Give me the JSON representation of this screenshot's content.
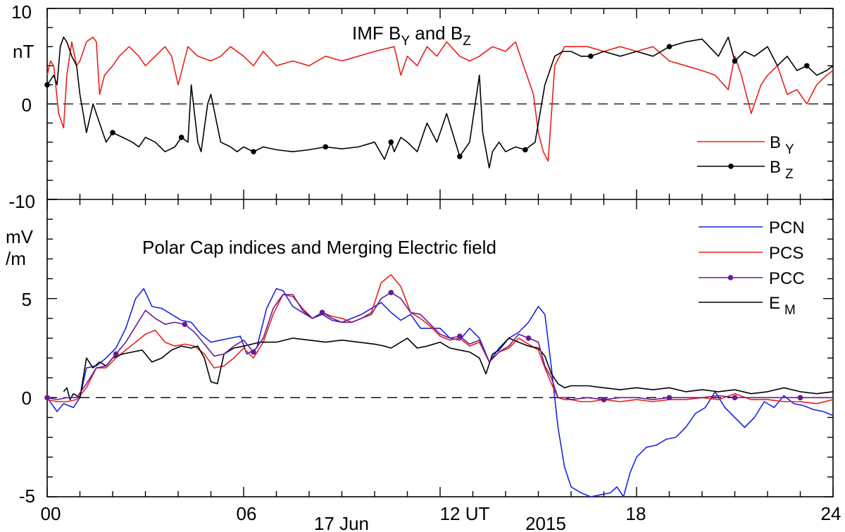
{
  "chart_data": [
    {
      "type": "line",
      "title": "IMF B",
      "title_sub_y": "Y",
      "title_mid": " and B",
      "title_sub_z": "Z",
      "ylabel": "nT",
      "ylim": [
        -10,
        10
      ],
      "yticks": [
        10,
        0,
        -10
      ],
      "yticklabels": [
        "10",
        "0",
        "-10"
      ],
      "xlim": [
        0,
        24
      ],
      "grid": false,
      "zero_line": "dashed",
      "legend_position": "right",
      "series": [
        {
          "name": "B",
          "name_sub": "Y",
          "color": "#e8201a",
          "marker": "none",
          "x": [
            0,
            0.1,
            0.2,
            0.35,
            0.5,
            0.6,
            0.75,
            0.9,
            1.0,
            1.2,
            1.4,
            1.5,
            1.6,
            1.75,
            2.0,
            2.2,
            2.5,
            2.8,
            3.0,
            3.3,
            3.6,
            3.8,
            4.0,
            4.3,
            4.6,
            5.0,
            5.3,
            5.6,
            6.0,
            6.3,
            6.6,
            7.0,
            7.5,
            8.0,
            8.5,
            9.0,
            9.5,
            10.0,
            10.6,
            10.8,
            11.0,
            11.3,
            11.6,
            11.9,
            12.2,
            12.6,
            12.9,
            13.2,
            13.6,
            14.0,
            14.3,
            14.6,
            14.85,
            15.0,
            15.15,
            15.3,
            15.5,
            15.8,
            16.0,
            16.5,
            17.0,
            17.5,
            18.0,
            18.5,
            19.0,
            19.5,
            20.0,
            20.4,
            20.8,
            21.0,
            21.2,
            21.5,
            21.8,
            22.0,
            22.3,
            22.6,
            22.9,
            23.2,
            23.5,
            23.8,
            24.0
          ],
          "y": [
            3,
            4.5,
            4,
            -1,
            -2.5,
            3,
            6.5,
            4,
            4.5,
            6.5,
            7,
            6.5,
            1,
            3,
            4,
            5,
            6,
            5,
            4,
            5,
            6,
            5,
            2,
            6,
            5,
            4.5,
            5,
            6,
            5,
            4,
            5.5,
            4,
            4.5,
            4,
            5,
            4.5,
            5,
            5.5,
            6,
            3,
            5,
            4,
            6,
            5,
            6.5,
            5,
            4.5,
            5,
            6,
            5.5,
            6.5,
            3.5,
            1,
            -3,
            -5,
            -6,
            4,
            6,
            6,
            6,
            5.5,
            6,
            5.5,
            6,
            4.5,
            4,
            3.5,
            3,
            1.5,
            5,
            3,
            -1,
            2,
            3,
            4,
            1,
            1.5,
            0,
            2,
            3,
            3.5
          ]
        },
        {
          "name": "B",
          "name_sub": "Z",
          "color": "#000000",
          "marker": "dot",
          "x": [
            0,
            0.1,
            0.2,
            0.3,
            0.4,
            0.5,
            0.6,
            0.75,
            0.9,
            1.0,
            1.2,
            1.4,
            1.6,
            1.8,
            2.0,
            2.3,
            2.6,
            2.8,
            3.0,
            3.3,
            3.6,
            3.9,
            4.1,
            4.3,
            4.4,
            4.6,
            4.7,
            4.9,
            5.0,
            5.3,
            5.6,
            5.8,
            6.0,
            6.3,
            6.6,
            7.0,
            7.5,
            8.0,
            8.5,
            9.0,
            9.5,
            10.0,
            10.3,
            10.5,
            10.6,
            10.8,
            11.0,
            11.3,
            11.6,
            11.9,
            12.2,
            12.6,
            12.9,
            13.2,
            13.3,
            13.5,
            13.6,
            13.8,
            14.0,
            14.3,
            14.6,
            14.9,
            15.2,
            15.5,
            15.75,
            16.0,
            16.3,
            16.6,
            17.0,
            17.5,
            18.0,
            18.5,
            19.0,
            19.5,
            20.0,
            20.5,
            20.8,
            21.0,
            21.3,
            21.6,
            22.0,
            22.3,
            22.6,
            22.9,
            23.2,
            23.5,
            23.8,
            24.0
          ],
          "y": [
            2,
            2.5,
            3,
            2,
            6,
            7,
            6.5,
            5,
            4,
            1,
            -3,
            0,
            -2,
            -4,
            -3,
            -3.5,
            -4,
            -4.5,
            -3.5,
            -4,
            -5,
            -4.5,
            -3.5,
            -4,
            2,
            -4,
            -5,
            0,
            1,
            -4,
            -4.5,
            -5,
            -4.5,
            -5,
            -4.5,
            -4.8,
            -5,
            -4.8,
            -4.5,
            -4.7,
            -4.5,
            -4,
            -5.8,
            -4,
            -5,
            -3.5,
            -4,
            -5,
            -2,
            -4,
            -1,
            -5.5,
            -4,
            3,
            -3,
            -6.7,
            -5,
            -4,
            -5,
            -4.5,
            -4.8,
            -4,
            2,
            5,
            5.5,
            5.5,
            5,
            5,
            5.5,
            5,
            5.5,
            5,
            6,
            6.5,
            6.8,
            5,
            7,
            4.5,
            5.5,
            5,
            6,
            4,
            5,
            3.5,
            4,
            3,
            3.5,
            4
          ]
        }
      ]
    },
    {
      "type": "line",
      "title": "Polar Cap indices and Merging Electric field",
      "ylabel_line1": "mV",
      "ylabel_line2": "/m",
      "ylim": [
        -5,
        10
      ],
      "yticks": [
        5,
        0,
        -5
      ],
      "yticklabels": [
        "5",
        "0",
        "-5"
      ],
      "xlim": [
        0,
        24
      ],
      "xticks": [
        0,
        6,
        12,
        18,
        24
      ],
      "xticklabels": [
        "00",
        "06",
        "12 UT",
        "18",
        "24"
      ],
      "date_label_day": "17 Jun",
      "date_label_year": "2015",
      "grid": false,
      "zero_line": "dashed",
      "legend_position": "top-right",
      "series": [
        {
          "name": "PCN",
          "color": "#1a24e0",
          "marker": "none",
          "x": [
            0,
            0.3,
            0.5,
            0.8,
            1.0,
            1.2,
            1.5,
            1.8,
            2.1,
            2.4,
            2.7,
            2.95,
            3.2,
            3.5,
            3.8,
            4.1,
            4.4,
            4.7,
            5.0,
            5.3,
            5.6,
            5.9,
            6.1,
            6.4,
            6.7,
            7.0,
            7.2,
            7.5,
            7.8,
            8.1,
            8.4,
            8.7,
            9.0,
            9.3,
            9.6,
            9.9,
            10.2,
            10.5,
            10.8,
            11.1,
            11.4,
            11.7,
            12.0,
            12.3,
            12.6,
            12.9,
            13.2,
            13.5,
            13.8,
            14.1,
            14.4,
            14.7,
            15.0,
            15.2,
            15.4,
            15.6,
            15.8,
            16.0,
            16.3,
            16.6,
            16.9,
            17.2,
            17.4,
            17.6,
            17.8,
            18.0,
            18.3,
            18.6,
            18.9,
            19.2,
            19.5,
            19.8,
            20.1,
            20.4,
            20.7,
            21.0,
            21.3,
            21.6,
            21.9,
            22.2,
            22.5,
            22.8,
            23.1,
            23.4,
            23.7,
            24.0
          ],
          "y": [
            0,
            -0.7,
            -0.3,
            -0.5,
            0,
            1.5,
            1.6,
            2.0,
            2.5,
            3.5,
            5.0,
            5.5,
            4.6,
            4.5,
            4.2,
            3.9,
            3.8,
            3.2,
            2.8,
            2.9,
            3.0,
            3.1,
            2.2,
            2.5,
            4.5,
            5.5,
            5.4,
            4.6,
            4.3,
            4.0,
            4.2,
            3.9,
            3.8,
            4.0,
            4.2,
            4.5,
            4.8,
            4.3,
            3.9,
            4.2,
            3.5,
            3.5,
            3.5,
            3.0,
            2.9,
            3.5,
            3.0,
            1.8,
            2.5,
            3.0,
            3.3,
            3.8,
            4.6,
            4.2,
            1.5,
            -1.5,
            -3.5,
            -4.5,
            -4.8,
            -5.0,
            -4.9,
            -4.8,
            -4.5,
            -5.0,
            -3.8,
            -3.0,
            -2.5,
            -2.4,
            -2.1,
            -2.0,
            -1.5,
            -0.8,
            -0.5,
            0.3,
            -0.5,
            -1.0,
            -1.5,
            -1.0,
            -0.2,
            -0.5,
            0.1,
            -0.3,
            -0.4,
            -0.6,
            -0.7,
            -0.9
          ]
        },
        {
          "name": "PCS",
          "color": "#e8201a",
          "marker": "none",
          "x": [
            0,
            0.3,
            0.6,
            0.9,
            1.2,
            1.5,
            1.8,
            2.1,
            2.4,
            2.7,
            3.0,
            3.3,
            3.6,
            3.9,
            4.2,
            4.5,
            4.8,
            5.1,
            5.4,
            5.7,
            6.0,
            6.3,
            6.6,
            6.9,
            7.2,
            7.5,
            7.8,
            8.1,
            8.4,
            8.7,
            9.0,
            9.3,
            9.6,
            9.9,
            10.2,
            10.5,
            10.8,
            11.1,
            11.4,
            11.7,
            12.0,
            12.3,
            12.6,
            12.9,
            13.2,
            13.5,
            13.8,
            14.1,
            14.4,
            14.7,
            15.0,
            15.2,
            15.4,
            15.6,
            15.8,
            16.0,
            16.3,
            16.6,
            17.0,
            17.5,
            18.0,
            18.5,
            19.0,
            19.5,
            20.0,
            20.5,
            21.0,
            21.5,
            22.0,
            22.5,
            23.0,
            23.5,
            24.0
          ],
          "y": [
            -0.1,
            -0.2,
            -0.2,
            -0.1,
            0.5,
            1.5,
            1.5,
            2.0,
            2.4,
            2.8,
            3.2,
            3.4,
            2.8,
            2.6,
            2.7,
            2.6,
            2.2,
            1.5,
            1.6,
            2.0,
            2.5,
            2.0,
            2.8,
            4.2,
            5.2,
            5.1,
            4.5,
            4.0,
            4.3,
            4.1,
            4.0,
            3.8,
            4.0,
            4.3,
            5.8,
            6.2,
            5.6,
            4.3,
            4.0,
            3.6,
            3.1,
            2.9,
            3.0,
            2.6,
            2.8,
            1.8,
            2.3,
            2.5,
            3.0,
            2.7,
            2.4,
            1.5,
            0.7,
            0,
            -0.1,
            -0.1,
            -0.2,
            -0.2,
            -0.1,
            -0.2,
            -0.1,
            -0.2,
            -0.1,
            -0.1,
            0,
            -0.1,
            0.2,
            -0.1,
            -0.1,
            -0.2,
            -0.2,
            -0.3,
            -0.1
          ]
        },
        {
          "name": "PCC",
          "color": "#6a1a90",
          "marker": "dot",
          "x": [
            0,
            0.3,
            0.6,
            0.9,
            1.2,
            1.5,
            1.8,
            2.1,
            2.4,
            2.7,
            3.0,
            3.3,
            3.6,
            3.9,
            4.2,
            4.5,
            4.8,
            5.1,
            5.4,
            5.7,
            6.0,
            6.3,
            6.6,
            6.9,
            7.2,
            7.5,
            7.8,
            8.1,
            8.4,
            8.7,
            9.0,
            9.3,
            9.6,
            9.9,
            10.2,
            10.5,
            10.8,
            11.1,
            11.4,
            11.7,
            12.0,
            12.3,
            12.6,
            12.9,
            13.2,
            13.5,
            13.8,
            14.1,
            14.4,
            14.7,
            15.0,
            15.2,
            15.4,
            15.6,
            15.8,
            16.0,
            16.5,
            17.0,
            17.5,
            18.0,
            18.5,
            19.0,
            19.5,
            20.0,
            20.5,
            21.0,
            21.5,
            22.0,
            22.5,
            23.0,
            23.5,
            24.0
          ],
          "y": [
            0,
            -0.1,
            0,
            0,
            0.7,
            1.5,
            1.6,
            2.2,
            2.8,
            3.6,
            4.4,
            4.0,
            3.7,
            3.8,
            3.7,
            3.3,
            2.7,
            2.1,
            2.2,
            2.6,
            2.9,
            2.3,
            3.0,
            4.5,
            5.2,
            5.2,
            4.4,
            4.0,
            4.3,
            4.0,
            3.8,
            3.8,
            4.0,
            4.2,
            5.0,
            5.3,
            5.0,
            4.3,
            4.2,
            3.7,
            3.2,
            3.0,
            3.1,
            2.7,
            2.9,
            1.8,
            2.3,
            2.6,
            3.2,
            3.0,
            2.8,
            1.6,
            1.0,
            0,
            0,
            -0.1,
            0,
            -0.1,
            0,
            0,
            -0.1,
            0,
            0,
            0,
            0.1,
            0,
            0,
            0,
            0,
            0,
            0,
            0
          ]
        },
        {
          "name": "E",
          "name_sub": "M",
          "color": "#000000",
          "marker": "none",
          "x": [
            0.5,
            0.6,
            0.7,
            0.8,
            1.0,
            1.2,
            1.4,
            1.6,
            1.8,
            2.0,
            2.3,
            2.6,
            2.9,
            3.2,
            3.5,
            3.8,
            4.1,
            4.4,
            4.6,
            4.8,
            5.0,
            5.2,
            5.4,
            5.7,
            6.0,
            6.5,
            7.0,
            7.5,
            8.0,
            8.5,
            9.0,
            9.5,
            10.0,
            10.3,
            10.5,
            10.8,
            11.0,
            11.3,
            11.6,
            12.0,
            12.3,
            12.6,
            12.9,
            13.2,
            13.4,
            13.6,
            13.8,
            14.1,
            14.4,
            14.7,
            15.0,
            15.2,
            15.4,
            15.6,
            15.8,
            16.0,
            16.5,
            17.0,
            17.5,
            18.0,
            18.5,
            19.0,
            19.5,
            20.0,
            20.5,
            21.0,
            21.5,
            22.0,
            22.5,
            23.0,
            23.5,
            24.0
          ],
          "y": [
            0.3,
            0.5,
            -0.1,
            0.2,
            0,
            2.0,
            1.5,
            1.8,
            1.6,
            2.0,
            2.2,
            2.3,
            2.4,
            1.8,
            2.0,
            2.4,
            2.6,
            2.5,
            2.6,
            2.0,
            0.8,
            0.7,
            2.2,
            2.5,
            2.6,
            2.8,
            2.8,
            3.0,
            2.9,
            2.8,
            2.9,
            2.8,
            2.7,
            2.6,
            2.5,
            2.8,
            3.0,
            2.5,
            2.6,
            2.8,
            2.5,
            2.4,
            2.3,
            2.0,
            1.2,
            2.2,
            2.4,
            3.0,
            2.8,
            2.6,
            2.5,
            2.1,
            1.2,
            0.7,
            0.5,
            0.6,
            0.6,
            0.5,
            0.4,
            0.5,
            0.4,
            0.5,
            0.3,
            0.4,
            0.3,
            0.4,
            0.2,
            0.3,
            0.5,
            0.3,
            0.2,
            0.3
          ]
        }
      ]
    }
  ]
}
